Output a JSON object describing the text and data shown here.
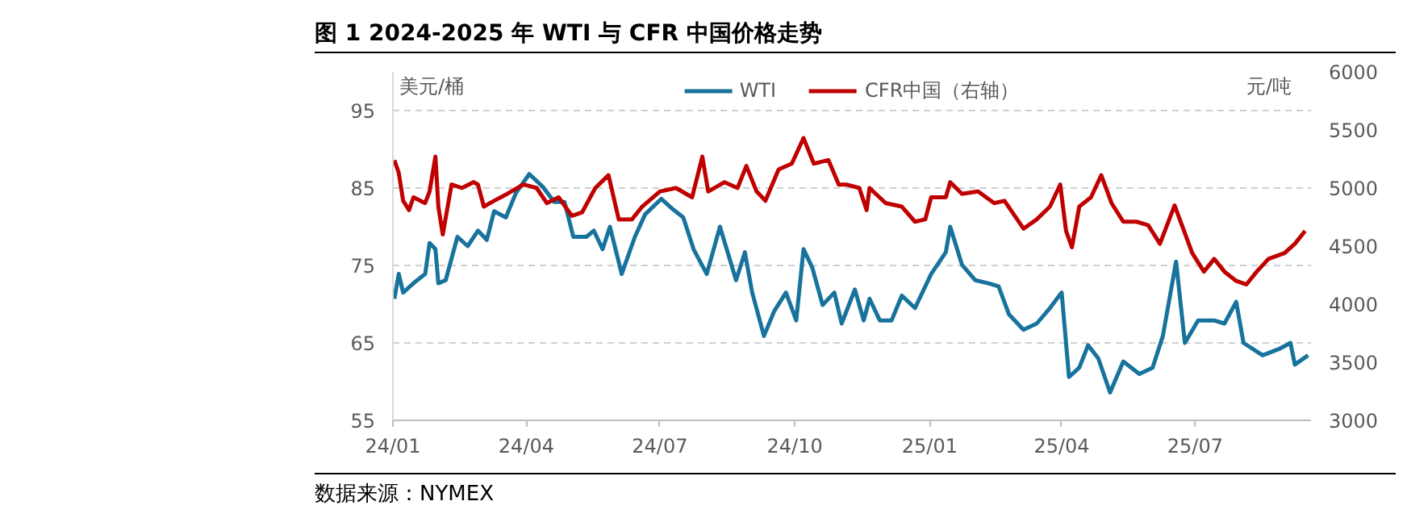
{
  "chart_data": {
    "type": "line",
    "title": "图 1 2024-2025 年 WTI 与 CFR 中国价格走势",
    "ylabel": "美元/桶",
    "y2label": "元/吨",
    "annotations": [
      "数据来源：NYMEX"
    ],
    "xlim": [
      "2024-01-01",
      "2025-09-18"
    ],
    "xticks": [
      {
        "value": "2024-01-01",
        "label": "24/01"
      },
      {
        "value": "2024-04-01",
        "label": "24/04"
      },
      {
        "value": "2024-07-01",
        "label": "24/07"
      },
      {
        "value": "2024-10-01",
        "label": "24/10"
      },
      {
        "value": "2025-01-01",
        "label": "25/01"
      },
      {
        "value": "2025-04-01",
        "label": "25/04"
      },
      {
        "value": "2025-07-01",
        "label": "25/07"
      }
    ],
    "ylim": [
      55,
      100
    ],
    "yticks": [
      55,
      65,
      75,
      85,
      95
    ],
    "y2lim": [
      3000,
      6000
    ],
    "y2ticks": [
      3000,
      3500,
      4000,
      4500,
      5000,
      5500,
      6000
    ],
    "grid": "y",
    "legend": "top",
    "line_style": "solid",
    "series": [
      {
        "name": "WTI",
        "color": "#17729c",
        "x": [
          "2024-01-02",
          "2024-01-05",
          "2024-01-08",
          "2024-01-15",
          "2024-01-23",
          "2024-01-26",
          "2024-01-30",
          "2024-02-01",
          "2024-02-06",
          "2024-02-14",
          "2024-02-21",
          "2024-02-28",
          "2024-03-05",
          "2024-03-10",
          "2024-03-18",
          "2024-03-25",
          "2024-04-03",
          "2024-04-12",
          "2024-04-20",
          "2024-04-27",
          "2024-05-03",
          "2024-05-12",
          "2024-05-17",
          "2024-05-23",
          "2024-05-28",
          "2024-06-05",
          "2024-06-14",
          "2024-06-21",
          "2024-07-02",
          "2024-07-09",
          "2024-07-17",
          "2024-07-24",
          "2024-08-02",
          "2024-08-11",
          "2024-08-22",
          "2024-08-28",
          "2024-09-02",
          "2024-09-10",
          "2024-09-17",
          "2024-09-25",
          "2024-10-02",
          "2024-10-07",
          "2024-10-13",
          "2024-10-20",
          "2024-10-28",
          "2024-11-02",
          "2024-11-11",
          "2024-11-17",
          "2024-11-21",
          "2024-11-28",
          "2024-12-06",
          "2024-12-13",
          "2024-12-22",
          "2025-01-02",
          "2025-01-12",
          "2025-01-15",
          "2025-01-23",
          "2025-02-01",
          "2025-02-10",
          "2025-02-17",
          "2025-02-24",
          "2025-03-06",
          "2025-03-15",
          "2025-03-24",
          "2025-04-01",
          "2025-04-06",
          "2025-04-13",
          "2025-04-19",
          "2025-04-26",
          "2025-05-04",
          "2025-05-13",
          "2025-05-24",
          "2025-06-02",
          "2025-06-09",
          "2025-06-15",
          "2025-06-18",
          "2025-06-24",
          "2025-07-03",
          "2025-07-14",
          "2025-07-21",
          "2025-07-29",
          "2025-08-03",
          "2025-08-16",
          "2025-08-27",
          "2025-09-04",
          "2025-09-07",
          "2025-09-16"
        ],
        "values": [
          70.7,
          73.9,
          71.5,
          72.7,
          73.9,
          77.9,
          77.1,
          72.7,
          73.1,
          78.7,
          77.5,
          79.5,
          78.3,
          82,
          81.2,
          84.4,
          86.8,
          85.2,
          83.2,
          83.2,
          78.7,
          78.7,
          79.5,
          77.1,
          80,
          73.9,
          78.7,
          81.6,
          83.6,
          82.4,
          81.2,
          77.1,
          73.9,
          80,
          73.1,
          76.7,
          71.5,
          65.9,
          69.1,
          71.5,
          67.9,
          77.1,
          74.7,
          69.9,
          71.5,
          67.5,
          71.9,
          67.9,
          70.7,
          67.9,
          67.9,
          71.1,
          69.5,
          73.9,
          76.7,
          80,
          75.1,
          73.1,
          72.7,
          72.3,
          68.7,
          66.7,
          67.5,
          69.5,
          71.5,
          60.6,
          61.8,
          64.7,
          63,
          58.6,
          62.6,
          61,
          61.8,
          65.9,
          72.3,
          75.5,
          65,
          67.9,
          67.9,
          67.5,
          70.3,
          65,
          63.4,
          64.2,
          65,
          62.2,
          63.4
        ]
      },
      {
        "name": "CFR中国（右轴）",
        "color": "#c00000",
        "axis": "y2",
        "x": [
          "2024-01-02",
          "2024-01-05",
          "2024-01-08",
          "2024-01-12",
          "2024-01-15",
          "2024-01-23",
          "2024-01-26",
          "2024-01-30",
          "2024-02-01",
          "2024-02-04",
          "2024-02-10",
          "2024-02-17",
          "2024-02-25",
          "2024-02-28",
          "2024-03-03",
          "2024-03-10",
          "2024-03-19",
          "2024-03-30",
          "2024-04-08",
          "2024-04-15",
          "2024-04-23",
          "2024-05-02",
          "2024-05-09",
          "2024-05-18",
          "2024-05-27",
          "2024-06-03",
          "2024-06-12",
          "2024-06-19",
          "2024-07-01",
          "2024-07-12",
          "2024-07-23",
          "2024-07-30",
          "2024-08-03",
          "2024-08-14",
          "2024-08-23",
          "2024-08-29",
          "2024-09-05",
          "2024-09-11",
          "2024-09-20",
          "2024-09-29",
          "2024-10-07",
          "2024-10-14",
          "2024-10-24",
          "2024-10-31",
          "2024-11-05",
          "2024-11-14",
          "2024-11-19",
          "2024-11-21",
          "2024-12-02",
          "2024-12-13",
          "2024-12-22",
          "2024-12-29",
          "2025-01-02",
          "2025-01-12",
          "2025-01-15",
          "2025-01-23",
          "2025-02-03",
          "2025-02-14",
          "2025-02-21",
          "2025-03-06",
          "2025-03-15",
          "2025-03-24",
          "2025-03-31",
          "2025-04-04",
          "2025-04-08",
          "2025-04-13",
          "2025-04-21",
          "2025-04-28",
          "2025-05-05",
          "2025-05-13",
          "2025-05-22",
          "2025-05-30",
          "2025-06-07",
          "2025-06-17",
          "2025-06-22",
          "2025-06-29",
          "2025-07-07",
          "2025-07-14",
          "2025-07-21",
          "2025-07-29",
          "2025-08-05",
          "2025-08-12",
          "2025-08-20",
          "2025-08-31",
          "2025-09-07",
          "2025-09-14"
        ],
        "values": [
          5240,
          5130,
          4890,
          4810,
          4920,
          4870,
          4970,
          5270,
          4840,
          4600,
          5030,
          5000,
          5050,
          5030,
          4840,
          4890,
          4950,
          5030,
          5000,
          4870,
          4920,
          4760,
          4790,
          5000,
          5110,
          4730,
          4730,
          4840,
          4970,
          5000,
          4920,
          5270,
          4970,
          5050,
          5000,
          5190,
          4970,
          4890,
          5160,
          5210,
          5430,
          5210,
          5240,
          5030,
          5030,
          5000,
          4810,
          5000,
          4870,
          4840,
          4710,
          4730,
          4920,
          4920,
          5050,
          4950,
          4970,
          4870,
          4890,
          4650,
          4730,
          4840,
          5030,
          4630,
          4490,
          4840,
          4920,
          5110,
          4870,
          4710,
          4710,
          4680,
          4520,
          4850,
          4680,
          4440,
          4280,
          4390,
          4280,
          4200,
          4170,
          4280,
          4390,
          4440,
          4520,
          4630
        ]
      }
    ]
  }
}
